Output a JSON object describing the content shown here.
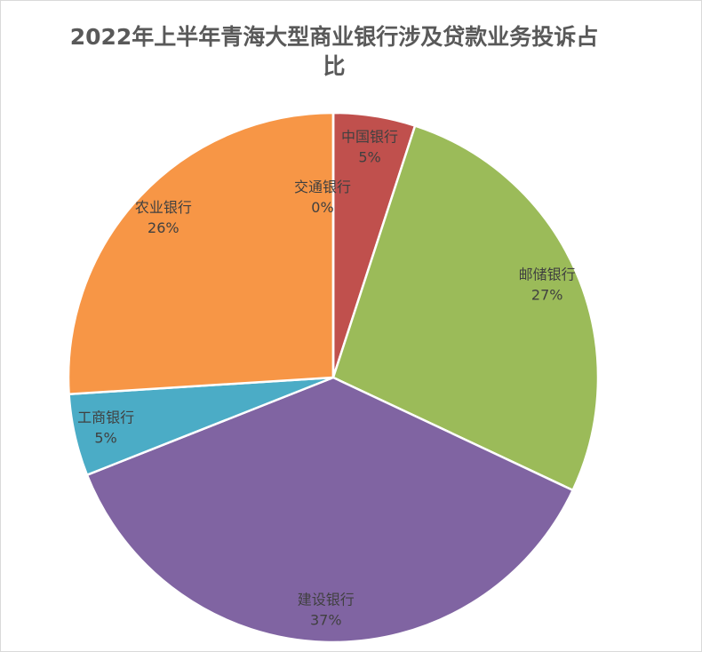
{
  "chart_data": {
    "type": "pie",
    "title": "2022年上半年青海大型商业银行涉及贷款业务投诉占比",
    "categories": [
      "中国银行",
      "邮储银行",
      "建设银行",
      "工商银行",
      "农业银行",
      "交通银行"
    ],
    "values": [
      5,
      27,
      37,
      5,
      26,
      0
    ],
    "value_labels": [
      "5%",
      "27%",
      "37%",
      "5%",
      "26%",
      "0%"
    ],
    "colors": [
      "#c0504d",
      "#9bbb59",
      "#8064a2",
      "#4bacc6",
      "#f79646",
      "#4f81bd"
    ]
  }
}
